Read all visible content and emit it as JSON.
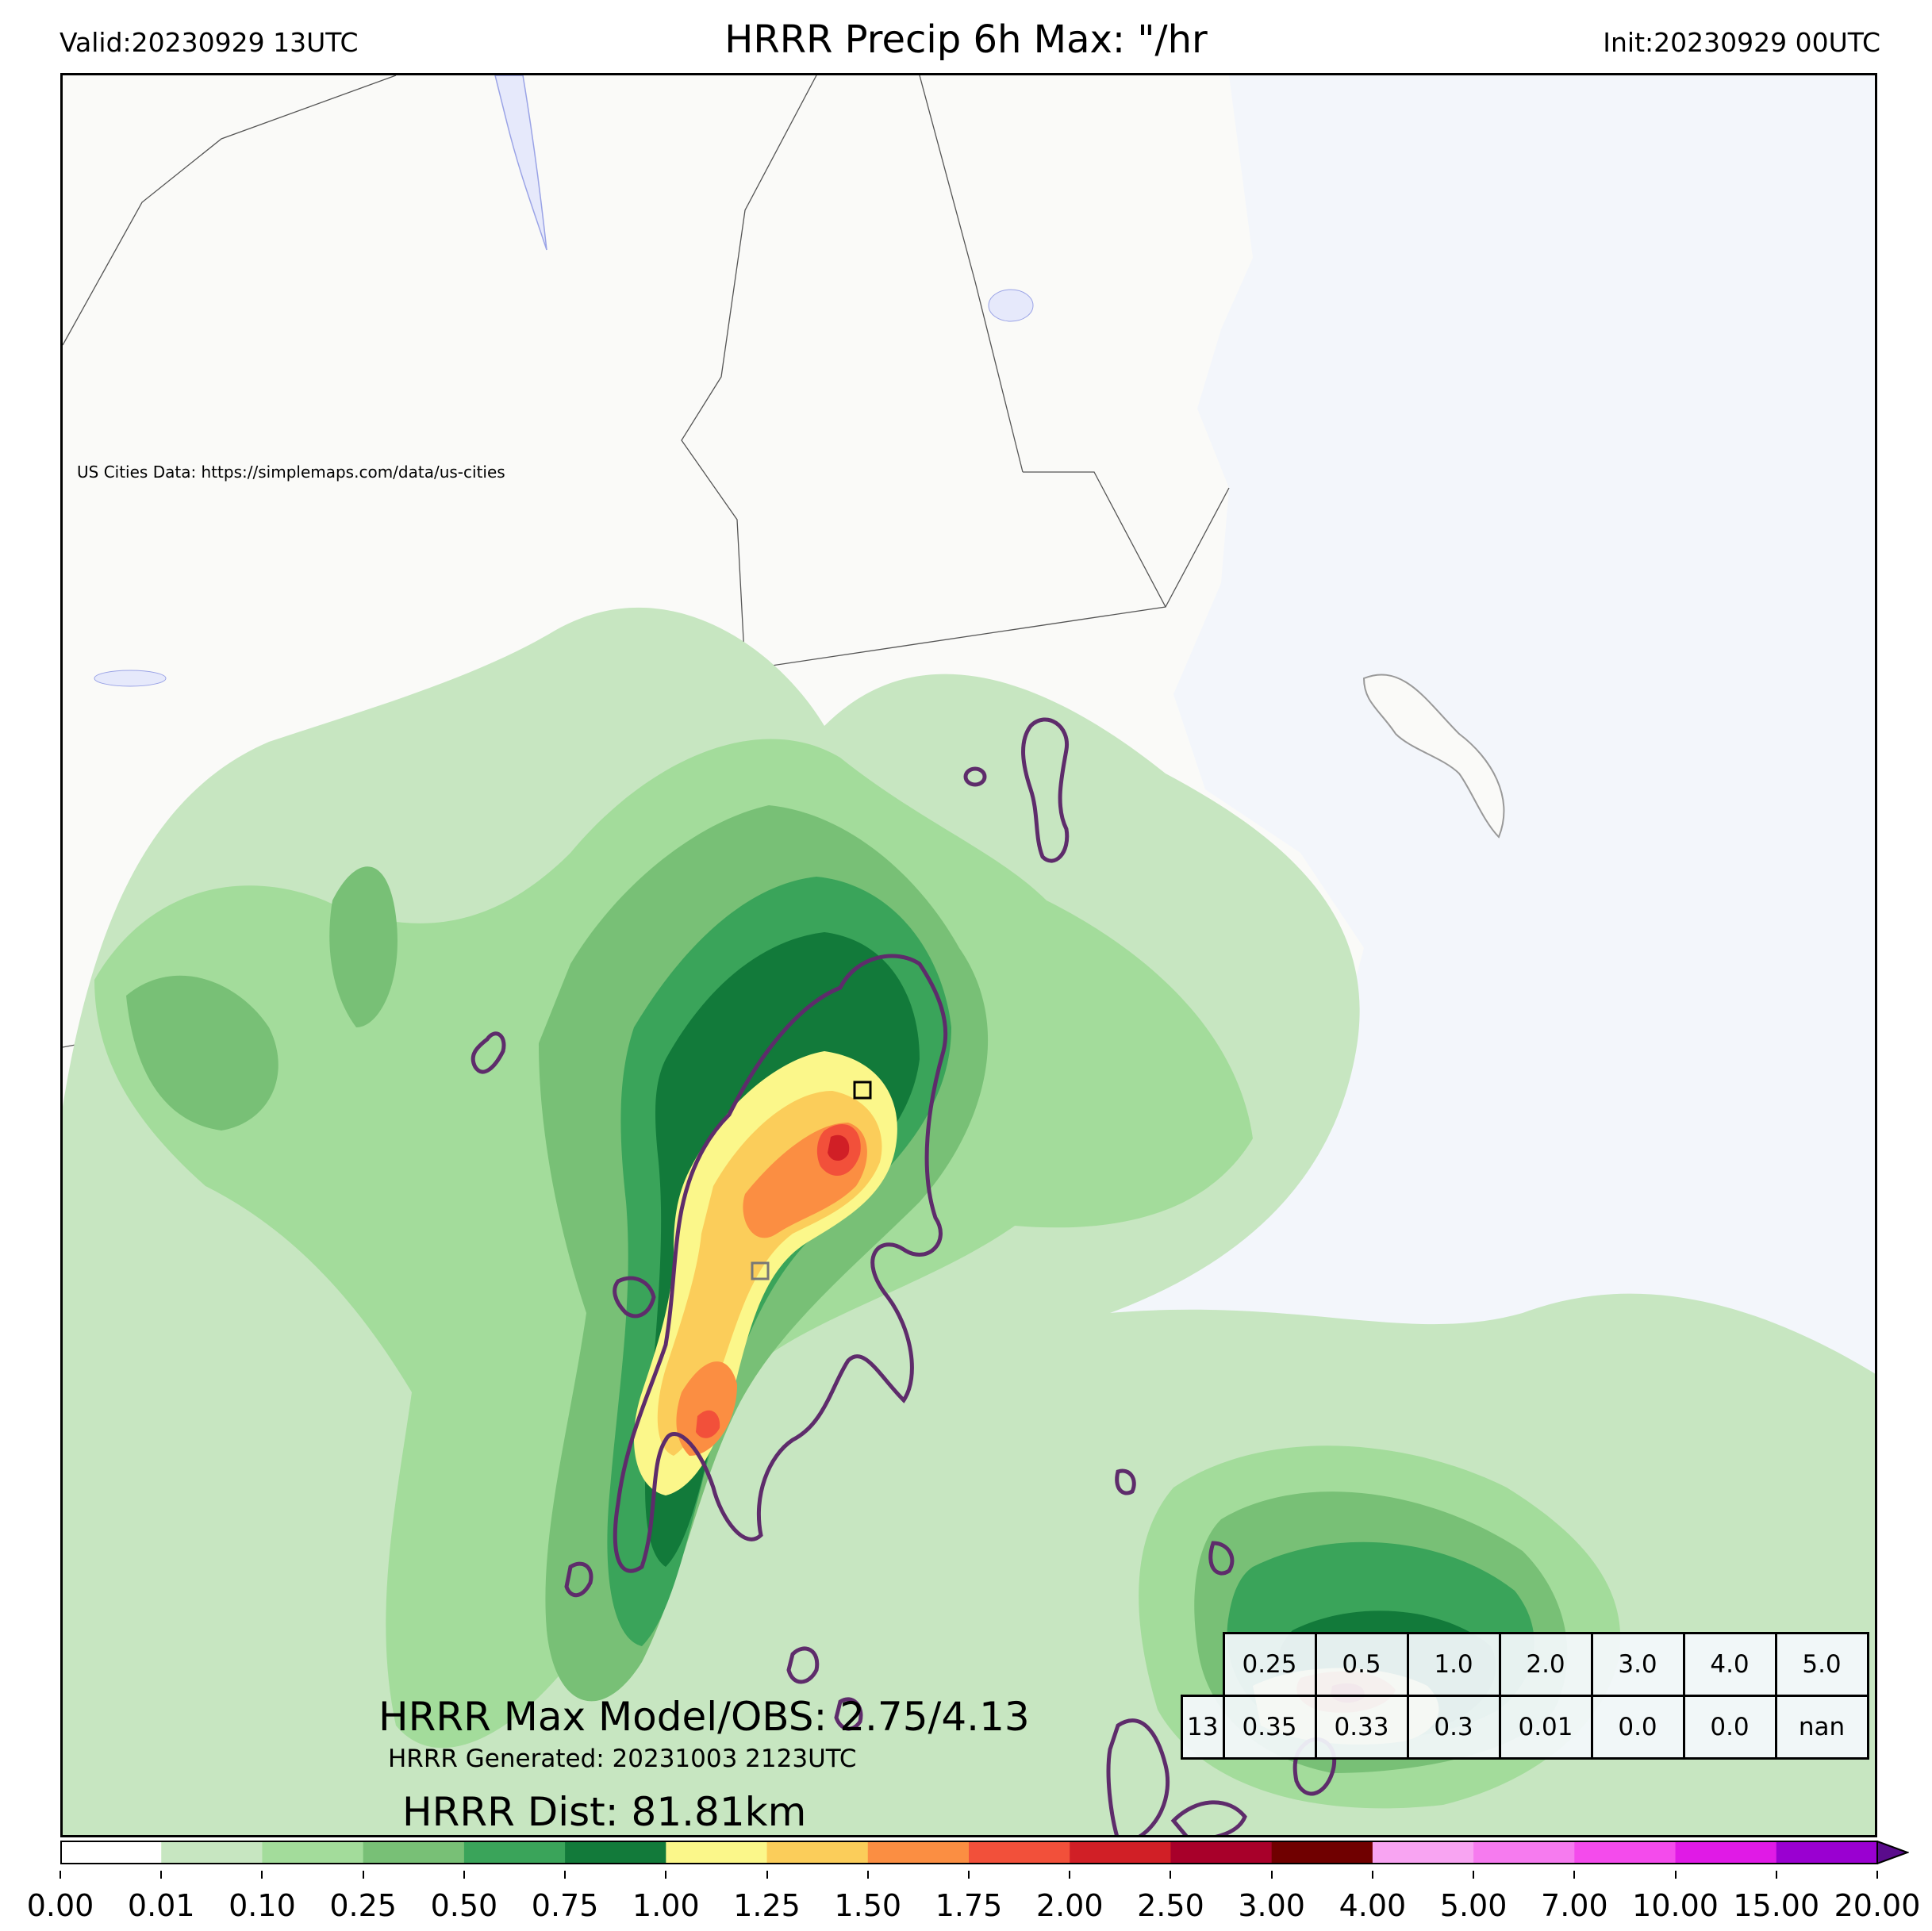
{
  "header": {
    "valid": "Valid:20230929 13UTC",
    "title": "HRRR Precip 6h Max: \"/hr",
    "init": "Init:20230929 00UTC"
  },
  "map": {
    "credit": "US Cities Data: https://simplemaps.com/data/us-cities",
    "ocean_color": "#f3f6fb",
    "land_color": "#fafaf8"
  },
  "stats": {
    "max_model_obs": "HRRR Max Model/OBS: 2.75/4.13",
    "generated": "HRRR Generated: 20231003 2123UTC",
    "dist": "HRRR Dist: 81.81km"
  },
  "threshold_table": {
    "thresholds": [
      "0.25",
      "0.5",
      "1.0",
      "2.0",
      "3.0",
      "4.0",
      "5.0"
    ],
    "row2_first": "13",
    "values": [
      "0.35",
      "0.33",
      "0.3",
      "0.01",
      "0.0",
      "0.0",
      "nan"
    ]
  },
  "colorbar": {
    "ticks": [
      "0.00",
      "0.01",
      "0.10",
      "0.25",
      "0.50",
      "0.75",
      "1.00",
      "1.25",
      "1.50",
      "1.75",
      "2.00",
      "2.50",
      "3.00",
      "4.00",
      "5.00",
      "7.00",
      "10.00",
      "15.00",
      "20.00"
    ],
    "colors": [
      "#ffffff",
      "#c7e6c1",
      "#a3dc9b",
      "#78c076",
      "#3aa45a",
      "#127a3a",
      "#fbf78a",
      "#fbcd5a",
      "#fb8e42",
      "#f2503a",
      "#d11f26",
      "#a8002a",
      "#700000",
      "#f8a4f2",
      "#f67bef",
      "#f44bec",
      "#e01ae6",
      "#9a00d1"
    ],
    "extend_color": "#5a0c8c"
  }
}
